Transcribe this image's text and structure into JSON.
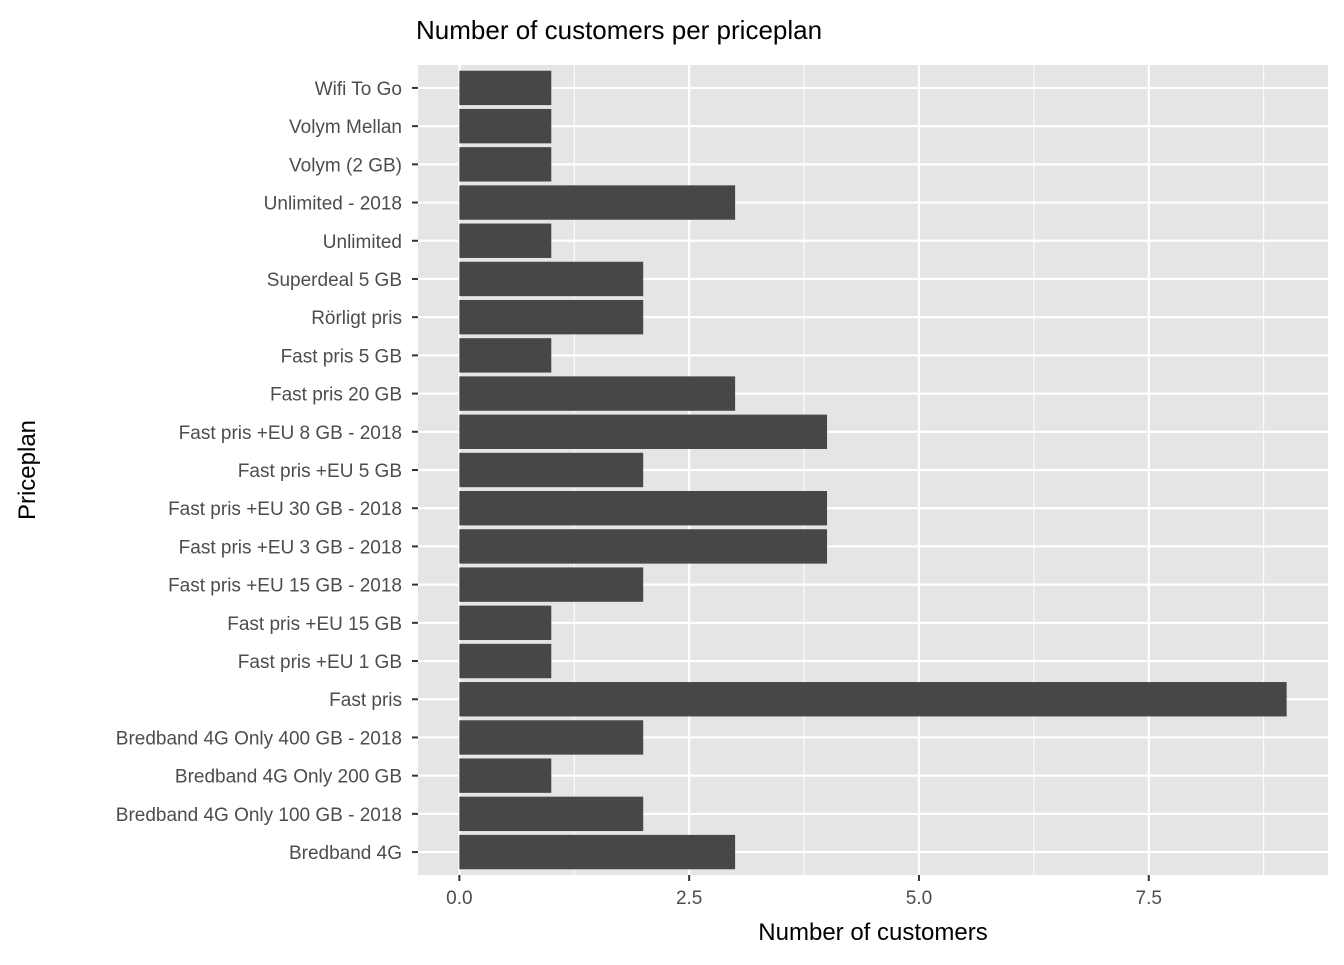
{
  "chart_data": {
    "type": "bar",
    "orientation": "horizontal",
    "title": "Number of customers per priceplan",
    "xlabel": "Number of customers",
    "ylabel": "Priceplan",
    "xlim": [
      -0.45,
      9.45
    ],
    "xticks": [
      0,
      2.5,
      5,
      7.5
    ],
    "xtick_labels": [
      "0.0",
      "2.5",
      "5.0",
      "7.5"
    ],
    "grid": true,
    "colors": {
      "bar": "#474747",
      "panel": "#e5e5e5",
      "grid": "#ffffff",
      "text": "#4d4d4d"
    },
    "categories": [
      "Bredband 4G",
      "Bredband 4G Only 100 GB - 2018",
      "Bredband 4G Only 200 GB",
      "Bredband 4G Only 400 GB - 2018",
      "Fast pris",
      "Fast pris +EU 1 GB",
      "Fast pris +EU 15 GB",
      "Fast pris +EU 15 GB - 2018",
      "Fast pris +EU 3 GB - 2018",
      "Fast pris +EU 30 GB - 2018",
      "Fast pris +EU 5 GB",
      "Fast pris +EU 8 GB - 2018",
      "Fast pris 20 GB",
      "Fast pris 5 GB",
      "Rörligt pris",
      "Superdeal 5 GB",
      "Unlimited",
      "Unlimited - 2018",
      "Volym (2 GB)",
      "Volym Mellan",
      "Wifi To Go"
    ],
    "values": [
      3,
      2,
      1,
      2,
      9,
      1,
      1,
      2,
      4,
      4,
      2,
      4,
      3,
      1,
      2,
      2,
      1,
      3,
      1,
      1,
      1
    ]
  }
}
